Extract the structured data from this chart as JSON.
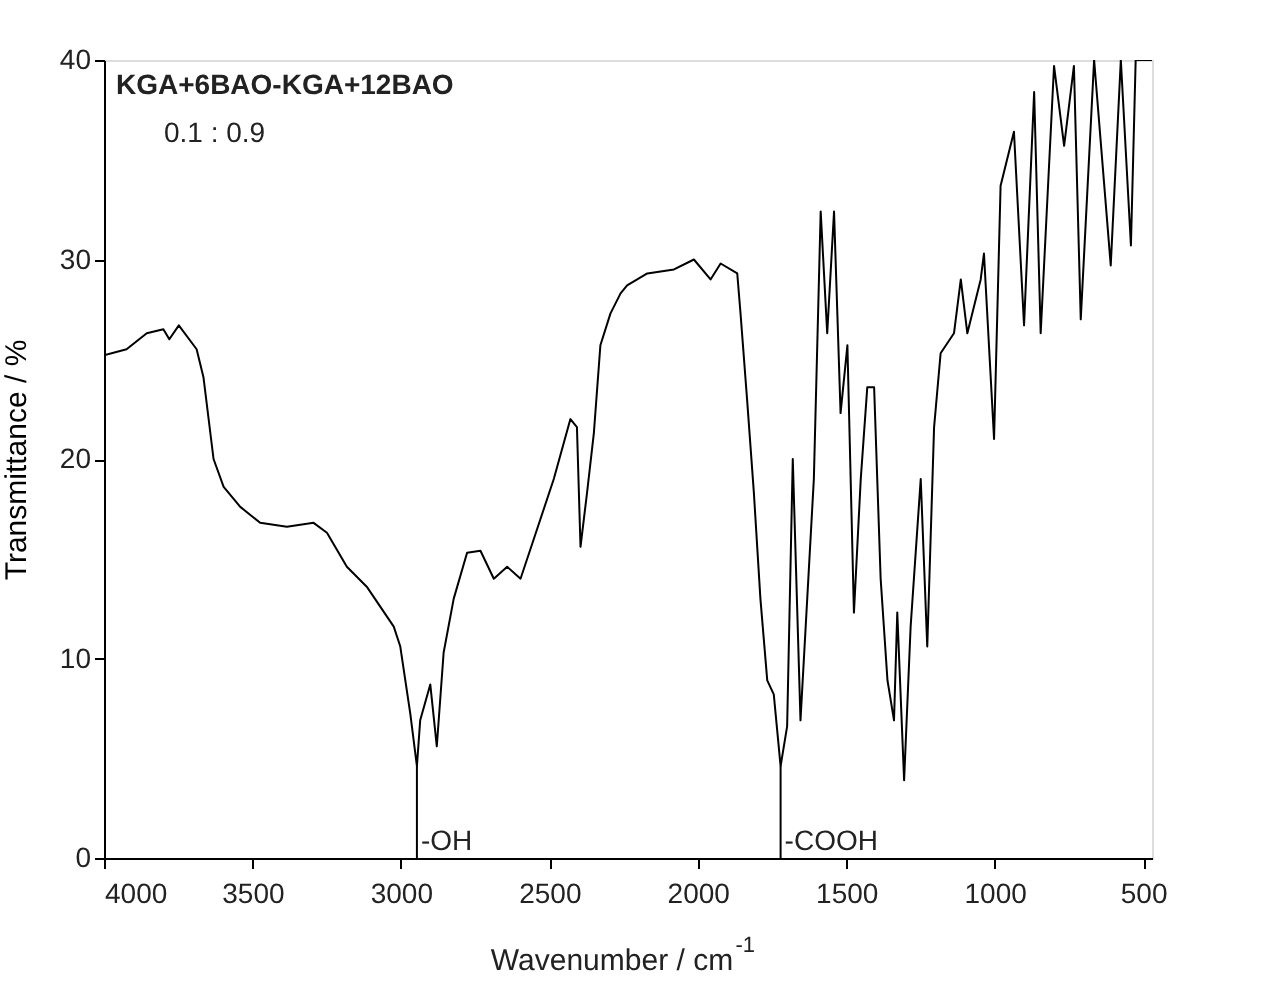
{
  "chart_data": {
    "type": "line",
    "xlabel": "Wavenumber / cm$^{-1}$",
    "ylabel": "Transmittance / %",
    "xlim": [
      4000,
      470
    ],
    "xticks": [
      4000,
      3500,
      3000,
      2500,
      2000,
      1500,
      1000,
      500
    ],
    "ylim": [
      0,
      40
    ],
    "yticks": [
      0,
      10,
      20,
      30,
      40
    ],
    "grid": false,
    "marker": "none",
    "line_style": "solid",
    "annotations": [
      "KGA+6BAO-KGA+12BAO",
      "0.1          :          0.9",
      {
        "text": "-OH",
        "x": 2946,
        "y": 4.6
      },
      {
        "text": "-COOH",
        "x": 1721,
        "y": 4.6
      }
    ],
    "series": [
      {
        "color": "#000000",
        "x": [
          4000,
          3924,
          3856,
          3800,
          3780,
          3748,
          3688,
          3665,
          3631,
          3597,
          3541,
          3474,
          3384,
          3294,
          3249,
          3182,
          3115,
          3024,
          3002,
          2968,
          2946,
          2935,
          2901,
          2879,
          2856,
          2822,
          2777,
          2732,
          2687,
          2642,
          2597,
          2552,
          2485,
          2429,
          2407,
          2395,
          2373,
          2350,
          2328,
          2294,
          2260,
          2238,
          2170,
          2080,
          2013,
          1957,
          1923,
          1867,
          1856,
          1834,
          1811,
          1789,
          1766,
          1744,
          1721,
          1699,
          1680,
          1654,
          1609,
          1586,
          1564,
          1541,
          1519,
          1496,
          1474,
          1451,
          1429,
          1406,
          1384,
          1361,
          1339,
          1328,
          1305,
          1283,
          1249,
          1227,
          1204,
          1182,
          1137,
          1114,
          1092,
          1047,
          1036,
          1002,
          980,
          935,
          901,
          867,
          845,
          800,
          766,
          733,
          710,
          665,
          609,
          575,
          541,
          525,
          470
        ],
        "values": [
          25.2,
          25.5,
          26.3,
          26.5,
          26.0,
          26.7,
          25.5,
          24.1,
          20.0,
          18.6,
          17.6,
          16.8,
          16.6,
          16.8,
          16.3,
          14.6,
          13.6,
          11.6,
          10.6,
          7.2,
          4.6,
          6.9,
          8.7,
          5.6,
          10.3,
          13.0,
          15.3,
          15.4,
          14.0,
          14.6,
          14.0,
          16.0,
          19.0,
          22.0,
          21.6,
          15.6,
          18.3,
          21.3,
          25.7,
          27.3,
          28.3,
          28.7,
          29.3,
          29.5,
          30.0,
          29.0,
          29.8,
          29.3,
          27.3,
          23.0,
          18.3,
          13.0,
          8.9,
          8.2,
          4.6,
          6.6,
          20.0,
          6.9,
          19.0,
          32.4,
          26.3,
          32.4,
          22.3,
          25.7,
          12.3,
          19.0,
          23.6,
          23.6,
          14.0,
          8.9,
          6.9,
          12.3,
          3.9,
          11.6,
          19.0,
          10.6,
          21.6,
          25.3,
          26.3,
          29.0,
          26.3,
          29.0,
          30.3,
          21.0,
          33.7,
          36.4,
          26.7,
          38.4,
          26.3,
          39.7,
          35.7,
          39.7,
          27.0,
          40,
          29.7,
          40,
          30.7,
          40,
          40
        ]
      }
    ]
  }
}
